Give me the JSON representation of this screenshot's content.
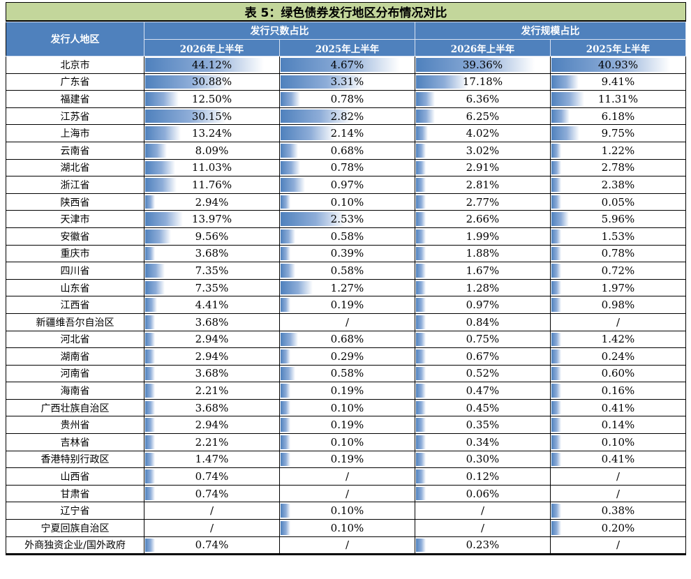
{
  "title": "表 5：绿色债券发行地区分布情况对比",
  "headers": {
    "region": "发行人地区",
    "group1": "发行只数占比",
    "group2": "发行规模占比",
    "h2026": "2026年上半年",
    "h2025": "2025年上半年"
  },
  "bar_maxima": {
    "count_2026": 44.12,
    "count_2025": 4.67,
    "scale_2026": 39.36,
    "scale_2025": 40.93
  },
  "rows": [
    {
      "region": "北京市",
      "c26": "44.12%",
      "c25": "4.67%",
      "s26": "39.36%",
      "s25": "40.93%"
    },
    {
      "region": "广东省",
      "c26": "30.88%",
      "c25": "3.31%",
      "s26": "17.18%",
      "s25": "9.41%"
    },
    {
      "region": "福建省",
      "c26": "12.50%",
      "c25": "0.78%",
      "s26": "6.36%",
      "s25": "11.31%"
    },
    {
      "region": "江苏省",
      "c26": "30.15%",
      "c25": "2.82%",
      "s26": "6.25%",
      "s25": "6.18%"
    },
    {
      "region": "上海市",
      "c26": "13.24%",
      "c25": "2.14%",
      "s26": "4.02%",
      "s25": "9.75%"
    },
    {
      "region": "云南省",
      "c26": "8.09%",
      "c25": "0.68%",
      "s26": "3.02%",
      "s25": "1.22%"
    },
    {
      "region": "湖北省",
      "c26": "11.03%",
      "c25": "0.78%",
      "s26": "2.91%",
      "s25": "2.78%"
    },
    {
      "region": "浙江省",
      "c26": "11.76%",
      "c25": "0.97%",
      "s26": "2.81%",
      "s25": "2.38%"
    },
    {
      "region": "陕西省",
      "c26": "2.94%",
      "c25": "0.10%",
      "s26": "2.77%",
      "s25": "0.05%"
    },
    {
      "region": "天津市",
      "c26": "13.97%",
      "c25": "2.53%",
      "s26": "2.66%",
      "s25": "5.96%"
    },
    {
      "region": "安徽省",
      "c26": "9.56%",
      "c25": "0.58%",
      "s26": "1.99%",
      "s25": "1.53%"
    },
    {
      "region": "重庆市",
      "c26": "3.68%",
      "c25": "0.39%",
      "s26": "1.88%",
      "s25": "0.78%"
    },
    {
      "region": "四川省",
      "c26": "7.35%",
      "c25": "0.58%",
      "s26": "1.67%",
      "s25": "0.72%"
    },
    {
      "region": "山东省",
      "c26": "7.35%",
      "c25": "1.27%",
      "s26": "1.28%",
      "s25": "1.97%"
    },
    {
      "region": "江西省",
      "c26": "4.41%",
      "c25": "0.19%",
      "s26": "0.97%",
      "s25": "0.98%"
    },
    {
      "region": "新疆维吾尔自治区",
      "c26": "3.68%",
      "c25": "/",
      "s26": "0.84%",
      "s25": "/"
    },
    {
      "region": "河北省",
      "c26": "2.94%",
      "c25": "0.68%",
      "s26": "0.75%",
      "s25": "1.42%"
    },
    {
      "region": "湖南省",
      "c26": "2.94%",
      "c25": "0.29%",
      "s26": "0.67%",
      "s25": "0.24%"
    },
    {
      "region": "河南省",
      "c26": "3.68%",
      "c25": "0.58%",
      "s26": "0.52%",
      "s25": "0.60%"
    },
    {
      "region": "海南省",
      "c26": "2.21%",
      "c25": "0.19%",
      "s26": "0.47%",
      "s25": "0.16%"
    },
    {
      "region": "广西壮族自治区",
      "c26": "3.68%",
      "c25": "0.10%",
      "s26": "0.45%",
      "s25": "0.41%"
    },
    {
      "region": "贵州省",
      "c26": "2.94%",
      "c25": "0.19%",
      "s26": "0.35%",
      "s25": "0.14%"
    },
    {
      "region": "吉林省",
      "c26": "2.21%",
      "c25": "0.10%",
      "s26": "0.34%",
      "s25": "0.10%"
    },
    {
      "region": "香港特别行政区",
      "c26": "1.47%",
      "c25": "0.19%",
      "s26": "0.30%",
      "s25": "0.41%"
    },
    {
      "region": "山西省",
      "c26": "0.74%",
      "c25": "/",
      "s26": "0.12%",
      "s25": "/"
    },
    {
      "region": "甘肃省",
      "c26": "0.74%",
      "c25": "/",
      "s26": "0.06%",
      "s25": "/"
    },
    {
      "region": "辽宁省",
      "c26": "/",
      "c25": "0.10%",
      "s26": "/",
      "s25": "0.38%"
    },
    {
      "region": "宁夏回族自治区",
      "c26": "/",
      "c25": "0.10%",
      "s26": "/",
      "s25": "0.20%"
    },
    {
      "region": "外商独资企业/国外政府",
      "c26": "0.74%",
      "c25": "/",
      "s26": "0.23%",
      "s25": "/"
    }
  ]
}
